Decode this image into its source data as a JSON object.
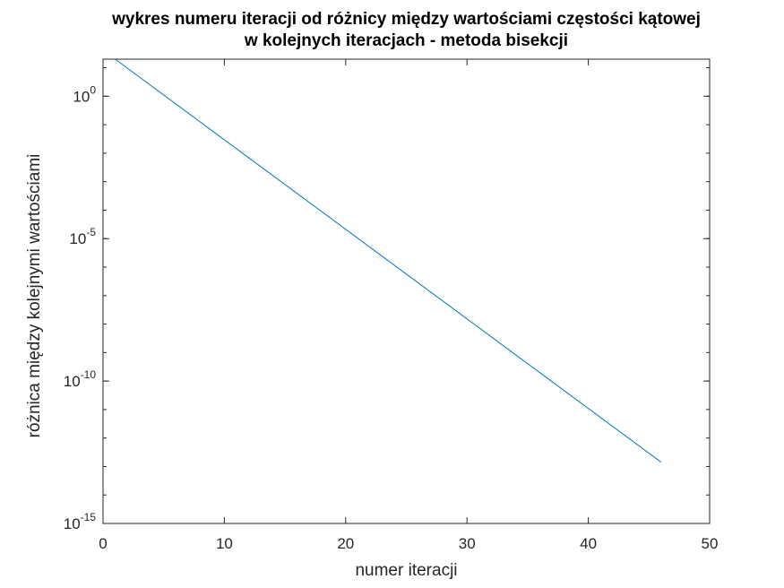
{
  "chart_data": {
    "type": "line",
    "title": [
      "wykres numeru iteracji od różnicy między wartościami częstości kątowej",
      "w kolejnych iteracjach - metoda bisekcji"
    ],
    "xlabel": "numer iteracji",
    "ylabel": "różnica między kolejnymi wartościami",
    "xlim": [
      0,
      50
    ],
    "ylim": [
      1e-15,
      20
    ],
    "yscale": "log",
    "grid": false,
    "line_color": "#0072BD",
    "x_ticks": [
      0,
      10,
      20,
      30,
      40,
      50
    ],
    "x_tick_labels": [
      "0",
      "10",
      "20",
      "30",
      "40",
      "50"
    ],
    "y_ticks": [
      {
        "value": 1,
        "base": "10",
        "exp": "0"
      },
      {
        "value": 1e-05,
        "base": "10",
        "exp": "-5"
      },
      {
        "value": 1e-10,
        "base": "10",
        "exp": "-10"
      },
      {
        "value": 1e-15,
        "base": "10",
        "exp": "-15"
      }
    ],
    "series": [
      {
        "x": [
          1,
          46
        ],
        "y": [
          20.0,
          1.42e-13
        ]
      }
    ]
  }
}
